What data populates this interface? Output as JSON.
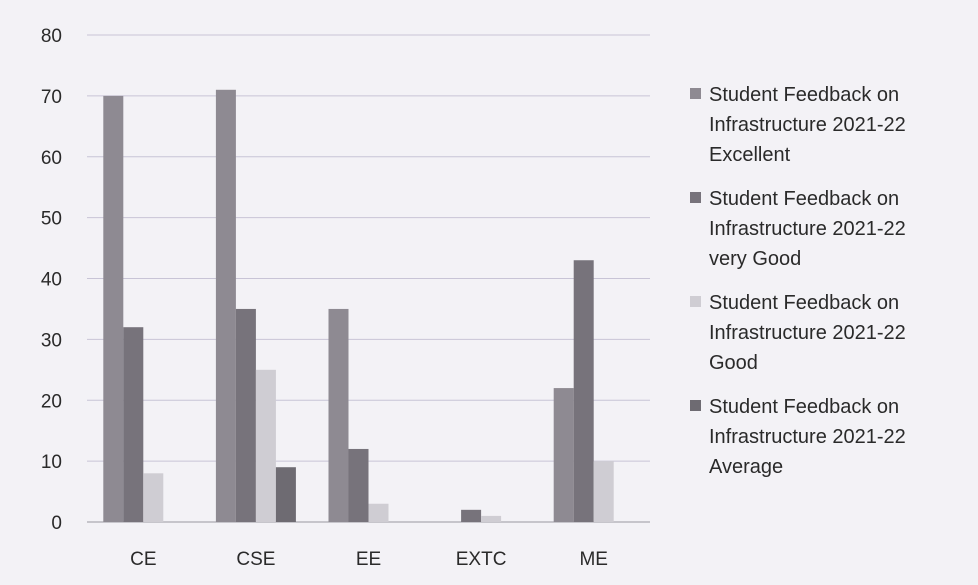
{
  "chart_data": {
    "type": "bar",
    "categories": [
      "CE",
      "CSE",
      "EE",
      "EXTC",
      "ME"
    ],
    "series": [
      {
        "name": "Student Feedback on Infrastructure 2021-22 Excellent",
        "values": [
          70,
          71,
          35,
          0,
          22
        ],
        "color": "#8e8a92"
      },
      {
        "name": "Student Feedback on Infrastructure 2021-22 very Good",
        "values": [
          32,
          35,
          12,
          2,
          43
        ],
        "color": "#77737b"
      },
      {
        "name": "Student Feedback on Infrastructure 2021-22 Good",
        "values": [
          8,
          25,
          3,
          1,
          10
        ],
        "color": "#cfcdd3"
      },
      {
        "name": "Student Feedback on Infrastructure 2021-22 Average",
        "values": [
          0,
          9,
          0,
          0,
          0
        ],
        "color": "#6e6b72"
      }
    ],
    "ylim": [
      0,
      80
    ],
    "yticks": [
      "0",
      "10",
      "20",
      "30",
      "40",
      "50",
      "60",
      "70",
      "80"
    ],
    "grid": true,
    "legend_position": "right"
  },
  "legend": [
    {
      "lines": [
        "Student Feedback on",
        "Infrastructure 2021-22",
        "Excellent"
      ]
    },
    {
      "lines": [
        "Student Feedback on",
        "Infrastructure 2021-22",
        "very Good"
      ]
    },
    {
      "lines": [
        "Student Feedback on",
        "Infrastructure 2021-22",
        "Good"
      ]
    },
    {
      "lines": [
        "Student Feedback on",
        "Infrastructure 2021-22",
        "Average"
      ]
    }
  ]
}
